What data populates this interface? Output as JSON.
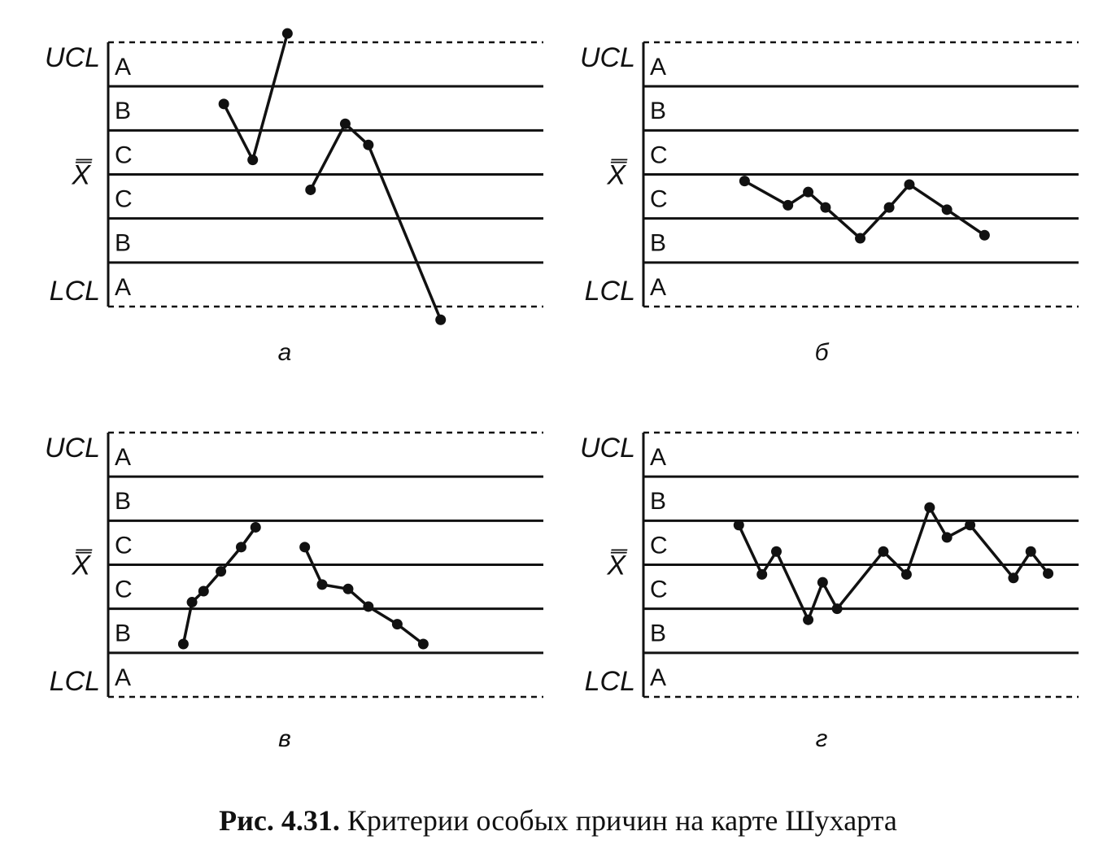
{
  "caption": {
    "number": "Рис. 4.31.",
    "text": "Критерии особых причин на карте Шухарта"
  },
  "chart_data": [
    {
      "type": "line",
      "panel_label": "а",
      "limits": {
        "upper": "UCL",
        "center": "X̿",
        "lower": "LCL"
      },
      "zones": [
        "A",
        "B",
        "C",
        "C",
        "B",
        "A"
      ],
      "ylim": [
        -3,
        3
      ],
      "xlim": [
        0,
        14
      ],
      "series": [
        {
          "x": [
            4,
            5,
            6.2
          ],
          "y": [
            1.6,
            0.33,
            3.2
          ]
        },
        {
          "x": [
            7,
            8.2,
            9
          ],
          "y": [
            -0.35,
            1.15,
            0.67
          ],
          "x_extra": [],
          "y_extra": []
        }
      ],
      "extended_series": [
        {
          "x": [
            7,
            8.2,
            9,
            11.5
          ],
          "y": [
            -0.35,
            1.15,
            0.67,
            -3.3
          ]
        }
      ]
    },
    {
      "type": "line",
      "panel_label": "б",
      "limits": {
        "upper": "UCL",
        "center": "X̿",
        "lower": "LCL"
      },
      "zones": [
        "A",
        "B",
        "C",
        "C",
        "B",
        "A"
      ],
      "ylim": [
        -3,
        3
      ],
      "xlim": [
        0,
        14
      ],
      "series": [
        {
          "x": [
            3.5,
            5,
            5.7,
            6.3,
            7.5,
            8.5,
            9.2,
            10.5,
            11.8
          ],
          "y": [
            -0.15,
            -0.7,
            -0.4,
            -0.75,
            -1.45,
            -0.75,
            -0.23,
            -0.8,
            -1.38
          ]
        }
      ]
    },
    {
      "type": "line",
      "panel_label": "в",
      "limits": {
        "upper": "UCL",
        "center": "X̿",
        "lower": "LCL"
      },
      "zones": [
        "A",
        "B",
        "C",
        "C",
        "B",
        "A"
      ],
      "ylim": [
        -3,
        3
      ],
      "xlim": [
        0,
        14
      ],
      "series": [
        {
          "x": [
            2.6,
            2.9,
            3.3,
            3.9,
            4.6,
            5.1
          ],
          "y": [
            -1.8,
            -0.85,
            -0.6,
            -0.15,
            0.4,
            0.85
          ]
        },
        {
          "x": [
            6.8,
            7.4,
            8.3,
            9,
            10,
            10.9
          ],
          "y": [
            0.4,
            -0.45,
            -0.55,
            -0.95,
            -1.35,
            -1.8
          ]
        }
      ]
    },
    {
      "type": "line",
      "panel_label": "г",
      "limits": {
        "upper": "UCL",
        "center": "X̿",
        "lower": "LCL"
      },
      "zones": [
        "A",
        "B",
        "C",
        "C",
        "B",
        "A"
      ],
      "ylim": [
        -3,
        3
      ],
      "xlim": [
        0,
        14
      ],
      "series": [
        {
          "x": [
            3.3,
            4.1,
            4.6,
            5.7,
            6.2,
            6.7,
            8.3,
            9.1,
            9.9,
            10.5,
            11.3,
            12.8,
            13.4,
            14
          ],
          "y": [
            0.9,
            -0.22,
            0.3,
            -1.25,
            -0.4,
            -1.0,
            0.3,
            -0.22,
            1.3,
            0.62,
            0.9,
            -0.3,
            0.3,
            -0.2
          ]
        }
      ]
    }
  ]
}
